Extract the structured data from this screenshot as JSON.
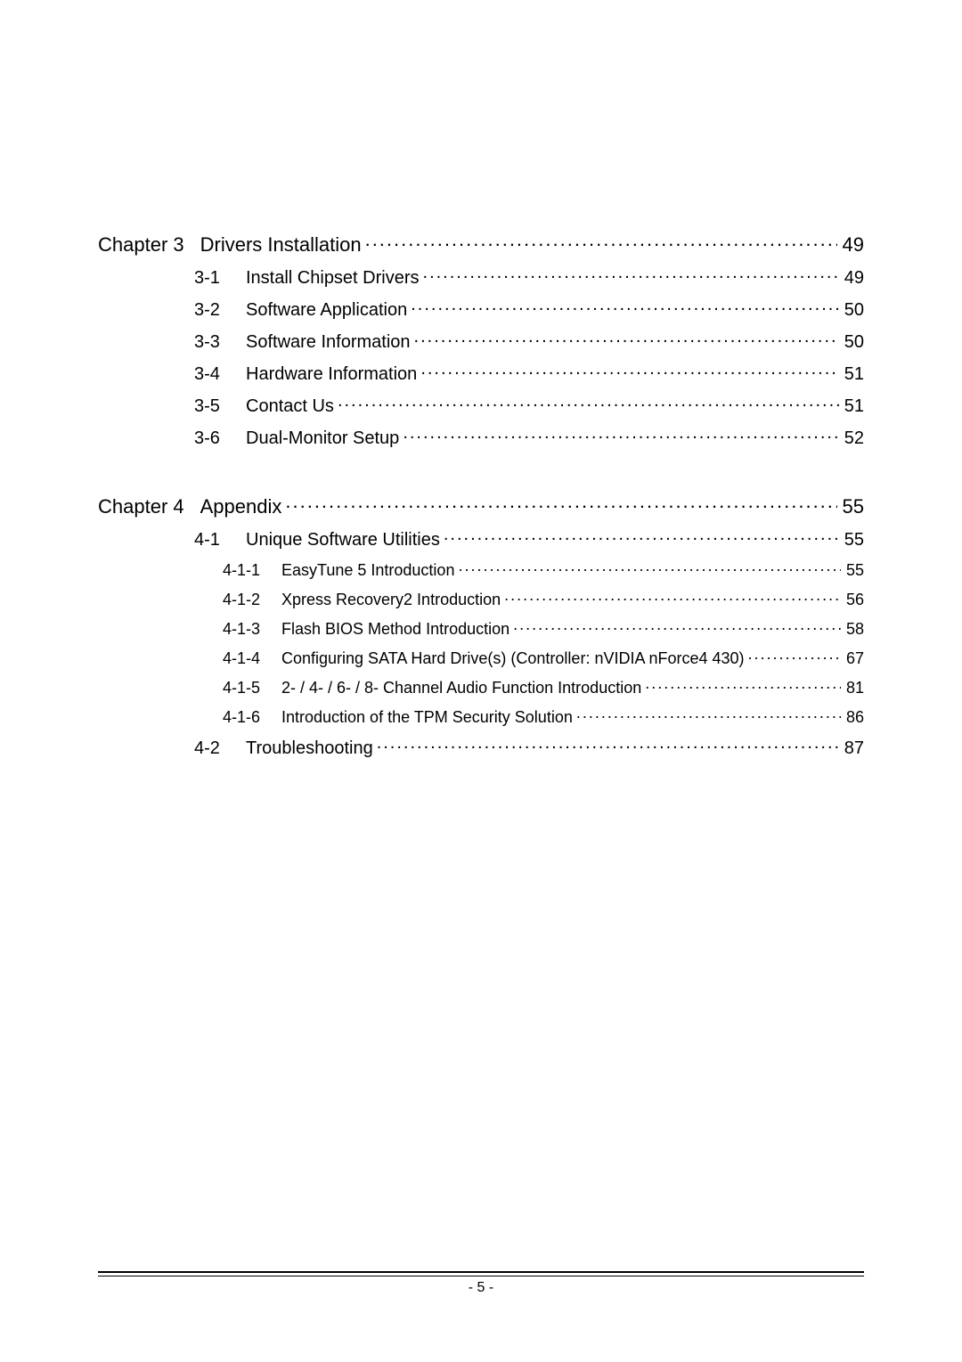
{
  "page_number_label": "- 5 -",
  "toc": [
    {
      "level": "chapter",
      "num": "Chapter 3",
      "title": "Drivers Installation",
      "page": "49"
    },
    {
      "level": "section",
      "num": "3-1",
      "title": "Install Chipset Drivers",
      "page": "49"
    },
    {
      "level": "section",
      "num": "3-2",
      "title": "Software Application",
      "page": "50"
    },
    {
      "level": "section",
      "num": "3-3",
      "title": "Software Information",
      "page": "50"
    },
    {
      "level": "section",
      "num": "3-4",
      "title": "Hardware Information",
      "page": "51"
    },
    {
      "level": "section",
      "num": "3-5",
      "title": "Contact Us",
      "page": "51"
    },
    {
      "level": "section",
      "num": "3-6",
      "title": "Dual-Monitor Setup",
      "page": "52"
    },
    {
      "level": "gap"
    },
    {
      "level": "chapter",
      "num": "Chapter 4",
      "title": "Appendix",
      "page": "55"
    },
    {
      "level": "section",
      "num": "4-1",
      "title": "Unique Software Utilities",
      "page": "55"
    },
    {
      "level": "sub",
      "num": "4-1-1",
      "title": "EasyTune 5 Introduction",
      "page": "55"
    },
    {
      "level": "sub",
      "num": "4-1-2",
      "title": "Xpress Recovery2 Introduction",
      "page": "56"
    },
    {
      "level": "sub",
      "num": "4-1-3",
      "title": "Flash BIOS Method Introduction",
      "page": "58"
    },
    {
      "level": "sub",
      "num": "4-1-4",
      "title": "Configuring SATA Hard Drive(s) (Controller: nVIDIA nForce4 430)",
      "page": "67"
    },
    {
      "level": "sub",
      "num": "4-1-5",
      "title": "2- / 4- / 6- / 8- Channel Audio Function Introduction",
      "page": "81"
    },
    {
      "level": "sub",
      "num": "4-1-6",
      "title": "Introduction of the TPM Security Solution",
      "page": "86"
    },
    {
      "level": "section",
      "num": "4-2",
      "title": "Troubleshooting",
      "page": "87"
    }
  ]
}
